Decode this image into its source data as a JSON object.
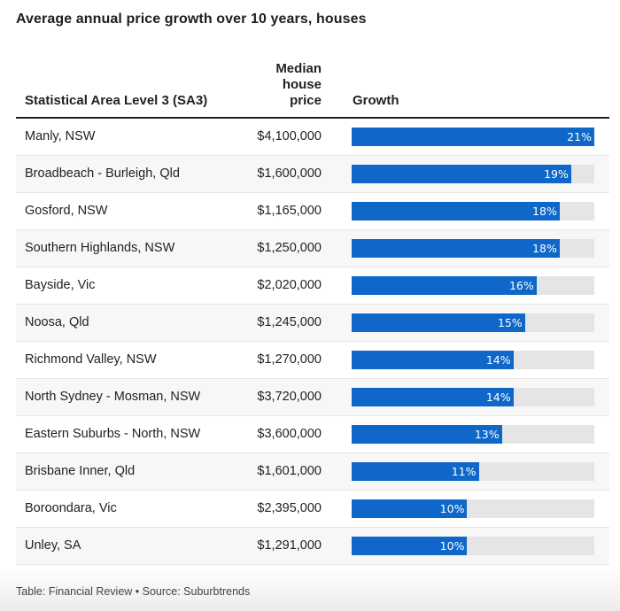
{
  "title": "Average annual price growth over 10 years, houses",
  "columns": {
    "area": "Statistical Area Level 3 (SA3)",
    "price": "Median house price",
    "growth": "Growth"
  },
  "footer": "Table: Financial Review • Source: Suburbtrends",
  "colors": {
    "bar": "#0f68c9",
    "track": "#e5e5e5"
  },
  "chart_data": {
    "type": "table",
    "title": "Average annual price growth over 10 years, houses",
    "columns": [
      "Statistical Area Level 3 (SA3)",
      "Median house price",
      "Growth"
    ],
    "max_growth": 21,
    "rows": [
      {
        "area": "Manly, NSW",
        "price": "$4,100,000",
        "growth": 21
      },
      {
        "area": "Broadbeach - Burleigh, Qld",
        "price": "$1,600,000",
        "growth": 19
      },
      {
        "area": "Gosford, NSW",
        "price": "$1,165,000",
        "growth": 18
      },
      {
        "area": "Southern Highlands, NSW",
        "price": "$1,250,000",
        "growth": 18
      },
      {
        "area": "Bayside, Vic",
        "price": "$2,020,000",
        "growth": 16
      },
      {
        "area": "Noosa, Qld",
        "price": "$1,245,000",
        "growth": 15
      },
      {
        "area": "Richmond Valley, NSW",
        "price": "$1,270,000",
        "growth": 14
      },
      {
        "area": "North Sydney - Mosman, NSW",
        "price": "$3,720,000",
        "growth": 14
      },
      {
        "area": "Eastern Suburbs - North, NSW",
        "price": "$3,600,000",
        "growth": 13
      },
      {
        "area": "Brisbane Inner, Qld",
        "price": "$1,601,000",
        "growth": 11
      },
      {
        "area": "Boroondara, Vic",
        "price": "$2,395,000",
        "growth": 10
      },
      {
        "area": "Unley, SA",
        "price": "$1,291,000",
        "growth": 10
      }
    ]
  }
}
